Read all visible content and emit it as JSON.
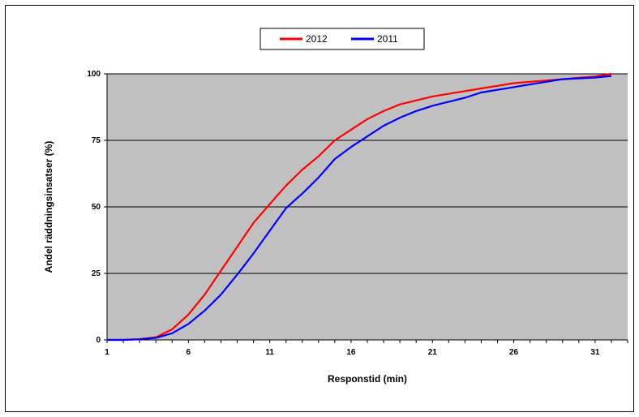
{
  "chart_data": {
    "type": "line",
    "xlabel": "Responstid (min)",
    "ylabel": "Andel räddningsinsatser (%)",
    "xlim": [
      1,
      33
    ],
    "ylim": [
      0,
      100
    ],
    "x_ticks": [
      1,
      6,
      11,
      16,
      21,
      26,
      31
    ],
    "y_ticks": [
      0,
      25,
      50,
      75,
      100
    ],
    "grid": "horizontal",
    "plot_background": "#c0c0c0",
    "legend_position": "top-center",
    "series": [
      {
        "name": "2012",
        "color": "#ff0000",
        "x": [
          1,
          2,
          3,
          4,
          5,
          6,
          7,
          8,
          9,
          10,
          11,
          12,
          13,
          14,
          15,
          16,
          17,
          18,
          19,
          20,
          21,
          22,
          23,
          24,
          25,
          26,
          27,
          28,
          29,
          30,
          31,
          32
        ],
        "values": [
          0,
          0,
          0.3,
          1,
          4,
          9.5,
          17,
          26,
          35,
          44,
          51,
          58,
          64,
          69,
          75,
          79,
          83,
          86,
          88.5,
          90,
          91.5,
          92.5,
          93.5,
          94.5,
          95.5,
          96.5,
          97,
          97.5,
          98,
          98.5,
          99,
          100
        ]
      },
      {
        "name": "2011",
        "color": "#0000ff",
        "x": [
          1,
          2,
          3,
          4,
          5,
          6,
          7,
          8,
          9,
          10,
          11,
          12,
          13,
          14,
          15,
          16,
          17,
          18,
          19,
          20,
          21,
          22,
          23,
          24,
          25,
          26,
          27,
          28,
          29,
          30,
          31,
          32
        ],
        "values": [
          0,
          0,
          0.2,
          0.8,
          2.5,
          6,
          11,
          17,
          24.5,
          32.5,
          41,
          49.5,
          55,
          61,
          68,
          72.5,
          76.5,
          80.5,
          83.5,
          86,
          88,
          89.5,
          91,
          93,
          94,
          95,
          96,
          97,
          98,
          98.3,
          98.6,
          99.2
        ]
      }
    ]
  }
}
